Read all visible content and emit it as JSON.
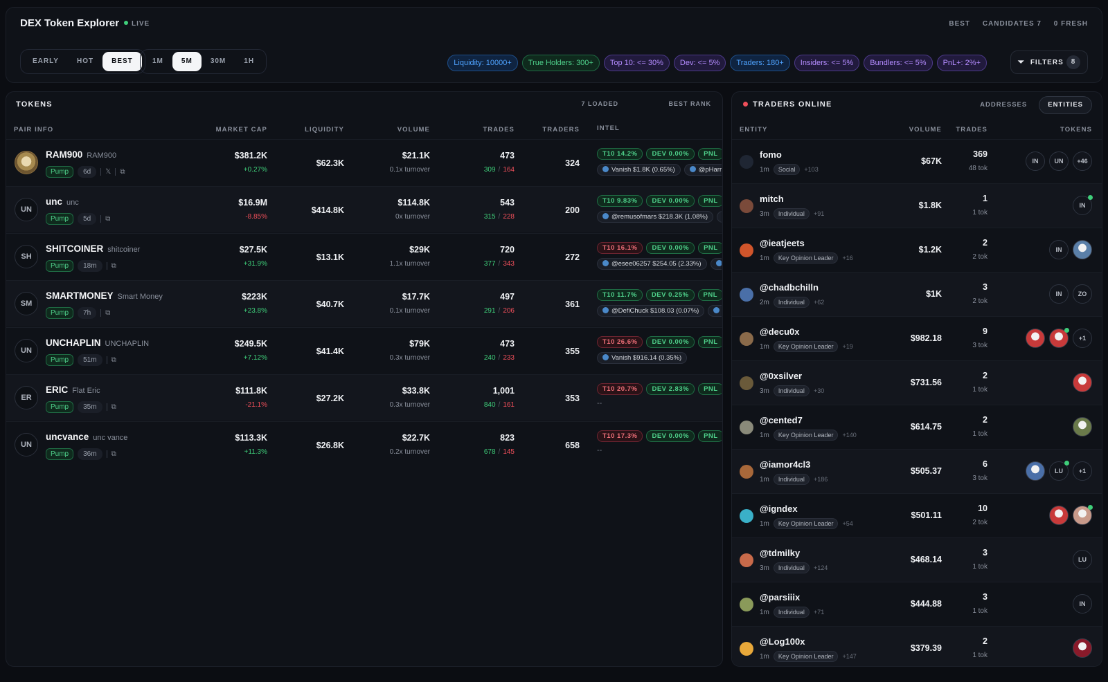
{
  "header": {
    "title": "DEX Token Explorer",
    "live_label": "LIVE",
    "status": [
      "BEST",
      "CANDIDATES 7",
      "0 FRESH"
    ],
    "modes": [
      {
        "label": "EARLY",
        "active": false
      },
      {
        "label": "HOT",
        "active": false
      },
      {
        "label": "BEST",
        "active": true
      }
    ],
    "timeframes": [
      {
        "label": "1M",
        "active": false
      },
      {
        "label": "5M",
        "active": true
      },
      {
        "label": "30M",
        "active": false
      },
      {
        "label": "1H",
        "active": false
      }
    ],
    "chips": [
      {
        "label": "Liquidity: 10000+",
        "color": "blue"
      },
      {
        "label": "True Holders: 300+",
        "color": "green"
      },
      {
        "label": "Top 10: <= 30%",
        "color": "purple"
      },
      {
        "label": "Dev: <= 5%",
        "color": "purple"
      },
      {
        "label": "Traders: 180+",
        "color": "blue"
      },
      {
        "label": "Insiders: <= 5%",
        "color": "purple"
      },
      {
        "label": "Bundlers: <= 5%",
        "color": "purple"
      },
      {
        "label": "PnL+: 2%+",
        "color": "purple"
      }
    ],
    "filters_label": "FILTERS",
    "filters_count": "8"
  },
  "tokens": {
    "title": "TOKENS",
    "loaded": "7 LOADED",
    "rank": "BEST RANK",
    "columns": [
      "PAIR INFO",
      "MARKET CAP",
      "LIQUIDITY",
      "VOLUME",
      "TRADES",
      "TRADERS",
      "INTEL"
    ],
    "rows": [
      {
        "avatar": "",
        "avatar_img": true,
        "symbol": "RAM900",
        "name": "RAM900",
        "platform": "Pump",
        "age": "6d",
        "x_link": true,
        "mcap": "$381.2K",
        "change": "+0.27%",
        "dir": "pos",
        "liq": "$62.3K",
        "vol": "$21.1K",
        "turnover": "0.1x turnover",
        "trades": "473",
        "buys": "309",
        "sells": "164",
        "traders": "324",
        "t10": "T10 14.2%",
        "t10c": "g",
        "dev": "DEV 0.00%",
        "devc": "g",
        "pnl": "PNL",
        "mentions": [
          "Vanish $1.8K (0.65%)",
          "@pHarri"
        ]
      },
      {
        "avatar": "UN",
        "symbol": "unc",
        "name": "unc",
        "platform": "Pump",
        "age": "5d",
        "mcap": "$16.9M",
        "change": "-8.85%",
        "dir": "neg",
        "liq": "$414.8K",
        "vol": "$114.8K",
        "turnover": "0x turnover",
        "trades": "543",
        "buys": "315",
        "sells": "228",
        "traders": "200",
        "t10": "T10 9.83%",
        "t10c": "g",
        "dev": "DEV 0.00%",
        "devc": "g",
        "pnl": "PNL",
        "mentions": [
          "@remusofmars $218.3K (1.08%)",
          ""
        ]
      },
      {
        "avatar": "SH",
        "symbol": "SHITCOINER",
        "name": "shitcoiner",
        "platform": "Pump",
        "age": "18m",
        "mcap": "$27.5K",
        "change": "+31.9%",
        "dir": "pos",
        "liq": "$13.1K",
        "vol": "$29K",
        "turnover": "1.1x turnover",
        "trades": "720",
        "buys": "377",
        "sells": "343",
        "traders": "272",
        "t10": "T10 16.1%",
        "t10c": "r",
        "dev": "DEV 0.00%",
        "devc": "g",
        "pnl": "PNL",
        "mentions": [
          "@esee06257 $254.05 (2.33%)",
          ""
        ]
      },
      {
        "avatar": "SM",
        "symbol": "SMARTMONEY",
        "name": "Smart Money",
        "platform": "Pump",
        "age": "7h",
        "mcap": "$223K",
        "change": "+23.8%",
        "dir": "pos",
        "liq": "$40.7K",
        "vol": "$17.7K",
        "turnover": "0.1x turnover",
        "trades": "497",
        "buys": "291",
        "sells": "206",
        "traders": "361",
        "t10": "T10 11.7%",
        "t10c": "g",
        "dev": "DEV 0.25%",
        "devc": "g",
        "pnl": "PNL",
        "mentions": [
          "@DefiChuck $108.03 (0.07%)",
          ""
        ]
      },
      {
        "avatar": "UN",
        "symbol": "UNCHAPLIN",
        "name": "UNCHAPLIN",
        "platform": "Pump",
        "age": "51m",
        "mcap": "$249.5K",
        "change": "+7.12%",
        "dir": "pos",
        "liq": "$41.4K",
        "vol": "$79K",
        "turnover": "0.3x turnover",
        "trades": "473",
        "buys": "240",
        "sells": "233",
        "traders": "355",
        "t10": "T10 26.6%",
        "t10c": "r",
        "dev": "DEV 0.00%",
        "devc": "g",
        "pnl": "PNL",
        "mentions": [
          "Vanish $916.14 (0.35%)"
        ]
      },
      {
        "avatar": "ER",
        "symbol": "ERIC",
        "name": "Flat Eric",
        "platform": "Pump",
        "age": "35m",
        "mcap": "$111.8K",
        "change": "-21.1%",
        "dir": "neg",
        "liq": "$27.2K",
        "vol": "$33.8K",
        "turnover": "0.3x turnover",
        "trades": "1,001",
        "buys": "840",
        "sells": "161",
        "traders": "353",
        "t10": "T10 20.7%",
        "t10c": "r",
        "dev": "DEV 2.83%",
        "devc": "g",
        "pnl": "PNL",
        "mentions": [],
        "empty": "--"
      },
      {
        "avatar": "UN",
        "symbol": "uncvance",
        "name": "unc vance",
        "platform": "Pump",
        "age": "36m",
        "mcap": "$113.3K",
        "change": "+11.3%",
        "dir": "pos",
        "liq": "$26.8K",
        "vol": "$22.7K",
        "turnover": "0.2x turnover",
        "trades": "823",
        "buys": "678",
        "sells": "145",
        "traders": "658",
        "t10": "T10 17.3%",
        "t10c": "r",
        "dev": "DEV 0.00%",
        "devc": "g",
        "pnl": "PNL",
        "mentions": [],
        "empty": "--"
      }
    ]
  },
  "traders": {
    "title": "TRADERS ONLINE",
    "tabs": [
      {
        "label": "ADDRESSES",
        "active": false
      },
      {
        "label": "ENTITIES",
        "active": true
      }
    ],
    "columns": [
      "ENTITY",
      "VOLUME",
      "TRADES",
      "TOKENS"
    ],
    "rows": [
      {
        "name": "fomo",
        "age": "1m",
        "type": "Social",
        "plus": "+103",
        "vol": "$67K",
        "trades": "369",
        "tok": "48 tok",
        "color": "#1f2633",
        "icons": [
          {
            "t": "IN"
          },
          {
            "t": "UN"
          },
          {
            "t": "+46"
          }
        ]
      },
      {
        "name": "mitch",
        "age": "3m",
        "type": "Individual",
        "plus": "+91",
        "vol": "$1.8K",
        "trades": "1",
        "tok": "1 tok",
        "color": "#7a4a3a",
        "icons": [
          {
            "t": "IN",
            "g": true
          }
        ]
      },
      {
        "name": "@ieatjeets",
        "age": "1m",
        "type": "Key Opinion Leader",
        "plus": "+16",
        "vol": "$1.2K",
        "trades": "2",
        "tok": "2 tok",
        "color": "#d0552b",
        "icons": [
          {
            "t": "IN"
          },
          {
            "t": "",
            "pic": "#5a7fa8"
          }
        ]
      },
      {
        "name": "@chadbchilln",
        "age": "2m",
        "type": "Individual",
        "plus": "+62",
        "vol": "$1K",
        "trades": "3",
        "tok": "2 tok",
        "color": "#4a6fa8",
        "icons": [
          {
            "t": "IN"
          },
          {
            "t": "ZO"
          }
        ]
      },
      {
        "name": "@decu0x",
        "age": "1m",
        "type": "Key Opinion Leader",
        "plus": "+19",
        "vol": "$982.18",
        "trades": "9",
        "tok": "3 tok",
        "color": "#8a6a4a",
        "icons": [
          {
            "t": "",
            "pic": "#c83a3a"
          },
          {
            "t": "",
            "pic": "#c83a3a",
            "g": true
          },
          {
            "t": "+1"
          }
        ]
      },
      {
        "name": "@0xsilver",
        "age": "3m",
        "type": "Individual",
        "plus": "+30",
        "vol": "$731.56",
        "trades": "2",
        "tok": "1 tok",
        "color": "#6a5a3a",
        "icons": [
          {
            "t": "",
            "pic": "#c83a3a"
          }
        ]
      },
      {
        "name": "@cented7",
        "age": "1m",
        "type": "Key Opinion Leader",
        "plus": "+140",
        "vol": "$614.75",
        "trades": "2",
        "tok": "1 tok",
        "color": "#8a8a7a",
        "icons": [
          {
            "t": "",
            "pic": "#6a7a4a"
          }
        ]
      },
      {
        "name": "@iamor4cl3",
        "age": "1m",
        "type": "Individual",
        "plus": "+186",
        "vol": "$505.37",
        "trades": "6",
        "tok": "3 tok",
        "color": "#a8683a",
        "icons": [
          {
            "t": "",
            "pic": "#4a6fa8"
          },
          {
            "t": "LU",
            "g": true
          },
          {
            "t": "+1"
          }
        ]
      },
      {
        "name": "@igndex",
        "age": "1m",
        "type": "Key Opinion Leader",
        "plus": "+54",
        "vol": "$501.11",
        "trades": "10",
        "tok": "2 tok",
        "color": "#3ab0c8",
        "icons": [
          {
            "t": "",
            "pic": "#c83a3a"
          },
          {
            "t": "",
            "pic": "#c89a8a",
            "g": true
          }
        ]
      },
      {
        "name": "@tdmilky",
        "age": "3m",
        "type": "Individual",
        "plus": "+124",
        "vol": "$468.14",
        "trades": "3",
        "tok": "1 tok",
        "color": "#c86a4a",
        "icons": [
          {
            "t": "LU"
          }
        ]
      },
      {
        "name": "@parsiiix",
        "age": "1m",
        "type": "Individual",
        "plus": "+71",
        "vol": "$444.88",
        "trades": "3",
        "tok": "1 tok",
        "color": "#8a9a5a",
        "icons": [
          {
            "t": "IN"
          }
        ]
      },
      {
        "name": "@Log100x",
        "age": "1m",
        "type": "Key Opinion Leader",
        "plus": "+147",
        "vol": "$379.39",
        "trades": "2",
        "tok": "1 tok",
        "color": "#e8a83a",
        "icons": [
          {
            "t": "",
            "pic": "#8a1a2a"
          }
        ]
      }
    ]
  }
}
